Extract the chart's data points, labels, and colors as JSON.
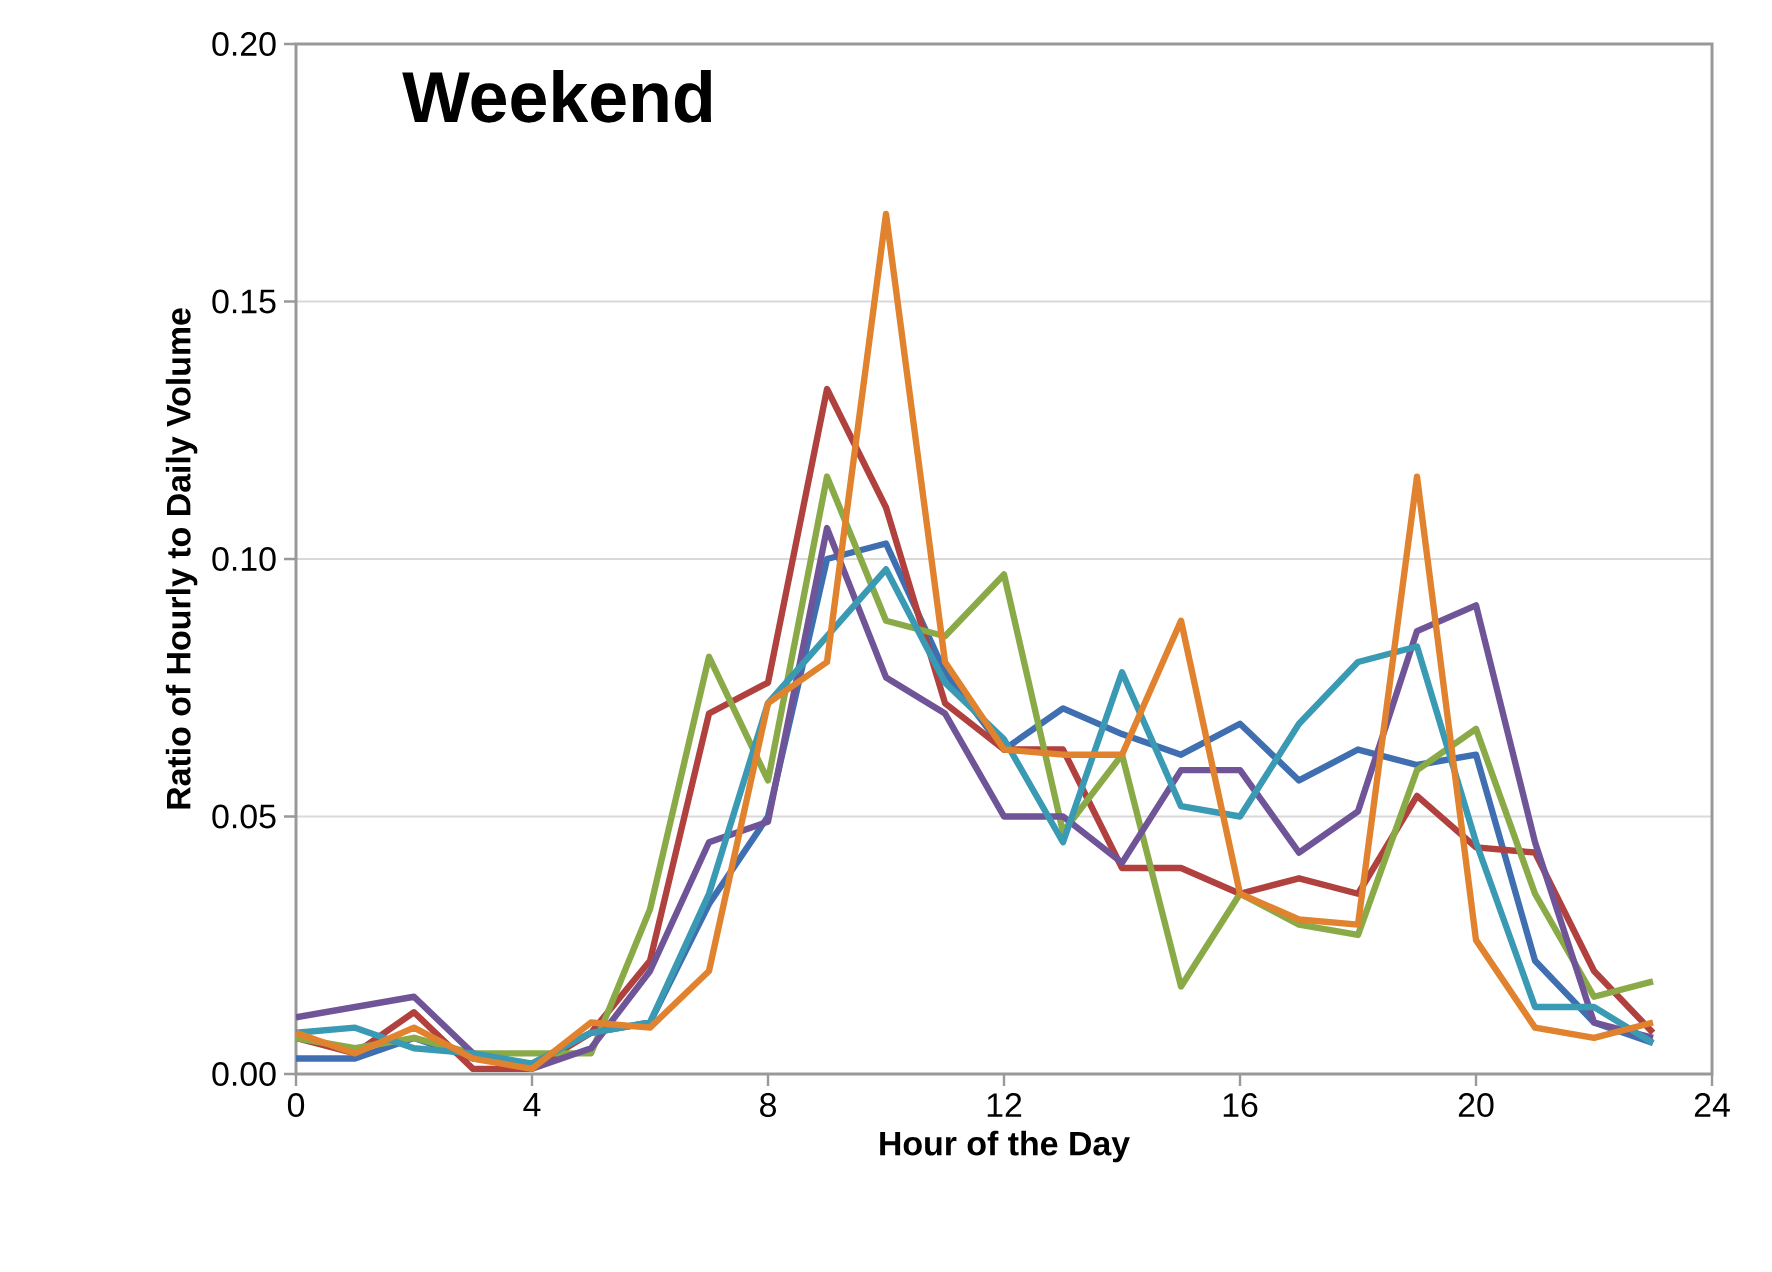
{
  "chart_data": {
    "type": "line",
    "title": "Weekend",
    "xlabel": "Hour of the Day",
    "ylabel": "Ratio of Hourly to Daily Volume",
    "x": [
      0,
      1,
      2,
      3,
      4,
      5,
      6,
      7,
      8,
      9,
      10,
      11,
      12,
      13,
      14,
      15,
      16,
      17,
      18,
      19,
      20,
      21,
      22,
      23
    ],
    "xlim": [
      0,
      24
    ],
    "xticks": [
      0,
      4,
      8,
      12,
      16,
      20,
      24
    ],
    "ylim": [
      0,
      0.2
    ],
    "yticks": [
      {
        "value": 0,
        "label": "0.00"
      },
      {
        "value": 0.05,
        "label": "0.05"
      },
      {
        "value": 0.1,
        "label": "0.10"
      },
      {
        "value": 0.15,
        "label": "0.15"
      },
      {
        "value": 0.2,
        "label": "0.20"
      }
    ],
    "grid": "y",
    "series": [
      {
        "color": "#3f6fb0",
        "values": [
          0.003,
          0.003,
          0.007,
          0.003,
          0.002,
          0.008,
          0.01,
          0.033,
          0.05,
          0.1,
          0.103,
          0.078,
          0.063,
          0.071,
          0.066,
          0.062,
          0.068,
          0.057,
          0.063,
          0.06,
          0.062,
          0.022,
          0.01,
          0.006
        ]
      },
      {
        "color": "#b0413e",
        "values": [
          0.007,
          0.004,
          0.012,
          0.001,
          0.001,
          0.008,
          0.022,
          0.07,
          0.076,
          0.133,
          0.11,
          0.072,
          0.063,
          0.063,
          0.04,
          0.04,
          0.035,
          0.038,
          0.035,
          0.054,
          0.044,
          0.043,
          0.02,
          0.008
        ]
      },
      {
        "color": "#8aaa48",
        "values": [
          0.007,
          0.005,
          0.007,
          0.004,
          0.004,
          0.004,
          0.032,
          0.081,
          0.057,
          0.116,
          0.088,
          0.085,
          0.097,
          0.047,
          0.062,
          0.017,
          0.035,
          0.029,
          0.027,
          0.059,
          0.067,
          0.035,
          0.015,
          0.018
        ]
      },
      {
        "color": "#6f5597",
        "values": [
          0.011,
          0.013,
          0.015,
          0.004,
          0.001,
          0.005,
          0.02,
          0.045,
          0.049,
          0.106,
          0.077,
          0.07,
          0.05,
          0.05,
          0.041,
          0.059,
          0.059,
          0.043,
          0.051,
          0.086,
          0.091,
          0.045,
          0.01,
          0.007
        ]
      },
      {
        "color": "#3a9ab4",
        "values": [
          0.008,
          0.009,
          0.005,
          0.004,
          0.002,
          0.008,
          0.01,
          0.035,
          0.072,
          0.085,
          0.098,
          0.076,
          0.065,
          0.045,
          0.078,
          0.052,
          0.05,
          0.068,
          0.08,
          0.083,
          0.045,
          0.013,
          0.013,
          0.006
        ]
      },
      {
        "color": "#e0822e",
        "values": [
          0.008,
          0.004,
          0.009,
          0.003,
          0.001,
          0.01,
          0.009,
          0.02,
          0.072,
          0.08,
          0.167,
          0.08,
          0.063,
          0.062,
          0.062,
          0.088,
          0.035,
          0.03,
          0.029,
          0.116,
          0.026,
          0.009,
          0.007,
          0.01
        ]
      }
    ]
  }
}
